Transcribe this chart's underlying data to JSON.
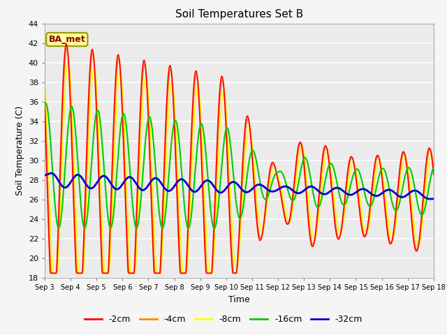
{
  "title": "Soil Temperatures Set B",
  "xlabel": "Time",
  "ylabel": "Soil Temperature (C)",
  "ylim": [
    18,
    44
  ],
  "yticks": [
    18,
    20,
    22,
    24,
    26,
    28,
    30,
    32,
    34,
    36,
    38,
    40,
    42,
    44
  ],
  "xtick_labels": [
    "Sep 3",
    "Sep 4",
    "Sep 5",
    "Sep 6",
    "Sep 7",
    "Sep 8",
    "Sep 9",
    "Sep 10",
    "Sep 11",
    "Sep 12",
    "Sep 13",
    "Sep 14",
    "Sep 15",
    "Sep 16",
    "Sep 17",
    "Sep 18"
  ],
  "colors": {
    "-2cm": "#ff0000",
    "-4cm": "#ff8800",
    "-8cm": "#ffff00",
    "-16cm": "#00cc00",
    "-32cm": "#0000cc"
  },
  "line_widths": {
    "-2cm": 1.2,
    "-4cm": 1.2,
    "-8cm": 1.2,
    "-16cm": 1.5,
    "-32cm": 2.0
  },
  "annotation_text": "BA_met",
  "annotation_color": "#8B0000",
  "annotation_bg": "#ffff99",
  "annotation_border": "#999900",
  "plot_bg_color": "#ebebeb",
  "fig_bg_color": "#f5f5f5",
  "legend_colors": [
    "#ff0000",
    "#ff8800",
    "#ffff00",
    "#00cc00",
    "#0000cc"
  ],
  "legend_labels": [
    "-2cm",
    "-4cm",
    "-8cm",
    "-16cm",
    "-32cm"
  ],
  "n_days": 15,
  "pts_per_day": 48
}
